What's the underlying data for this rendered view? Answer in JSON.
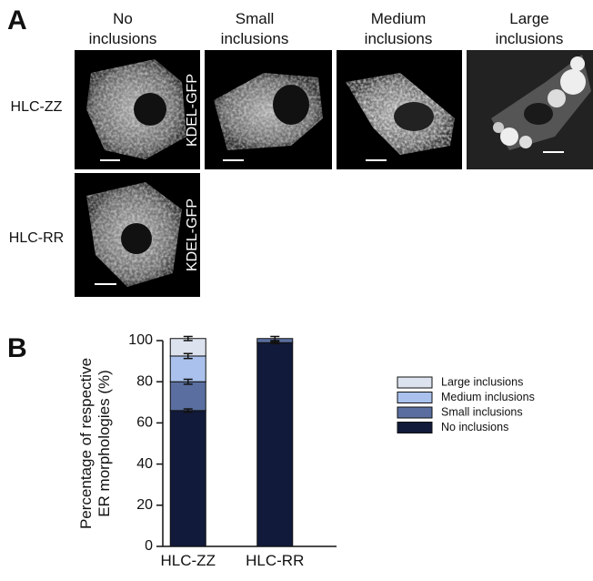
{
  "panel_a": {
    "letter": "A",
    "columns": [
      [
        "No",
        "inclusions"
      ],
      [
        "Small",
        "inclusions"
      ],
      [
        "Medium",
        "inclusions"
      ],
      [
        "Large",
        "inclusions"
      ]
    ],
    "rows": [
      {
        "label": "HLC-ZZ",
        "stain": "KDEL-GFP"
      },
      {
        "label": "HLC-RR",
        "stain": "KDEL-GFP"
      }
    ]
  },
  "panel_b": {
    "letter": "B"
  },
  "chart_data": {
    "type": "stacked_bar",
    "y_label": [
      "Percentage of respective",
      "ER morphologies (%)"
    ],
    "categories": [
      "HLC-ZZ",
      "HLC-RR"
    ],
    "series": [
      {
        "name": "No inclusions",
        "color": "#111a3a",
        "values": [
          66,
          99
        ],
        "errors": [
          0.8,
          0.5
        ]
      },
      {
        "name": "Small inclusions",
        "color": "#5a6fa0",
        "values": [
          14,
          2
        ],
        "errors": [
          1.2,
          1
        ]
      },
      {
        "name": "Medium inclusions",
        "color": "#a9c1ec",
        "values": [
          12.5,
          0
        ],
        "errors": [
          1.2,
          null
        ]
      },
      {
        "name": "Large inclusions",
        "color": "#dde3ee",
        "values": [
          8.5,
          0
        ],
        "errors": [
          1,
          null
        ]
      }
    ],
    "ylim": [
      0,
      100
    ],
    "yticks": [
      0,
      20,
      40,
      60,
      80,
      100
    ]
  }
}
